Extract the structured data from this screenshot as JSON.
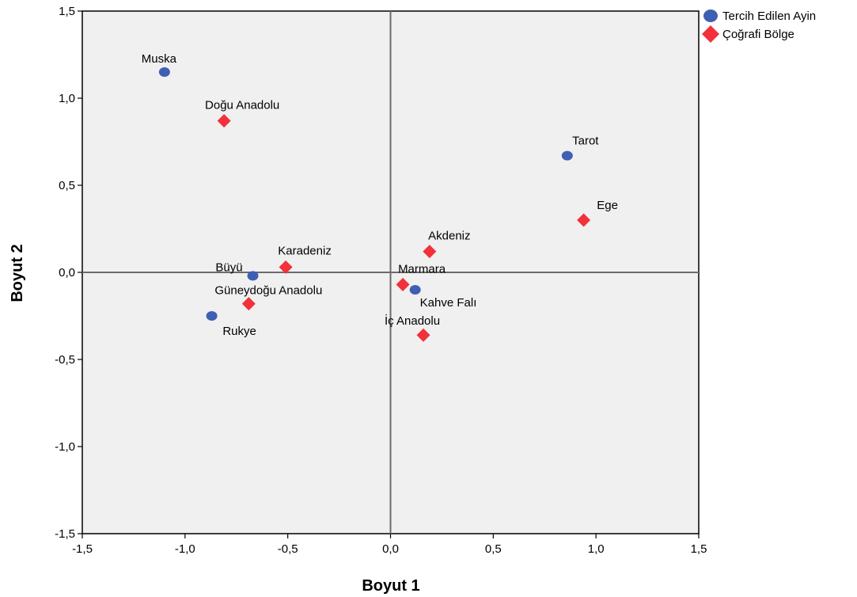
{
  "chart_data": {
    "type": "scatter",
    "title": "",
    "xlabel": "Boyut 1",
    "ylabel": "Boyut 2",
    "xlim": [
      -1.5,
      1.5
    ],
    "ylim": [
      -1.5,
      1.5
    ],
    "xticks": [
      -1.5,
      -1.0,
      -0.5,
      0.0,
      0.5,
      1.0,
      1.5
    ],
    "yticks": [
      -1.5,
      -1.0,
      -0.5,
      0.0,
      0.5,
      1.0,
      1.5
    ],
    "xtick_labels": [
      "-1,5",
      "-1,0",
      "-0,5",
      "0,0",
      "0,5",
      "1,0",
      "1,5"
    ],
    "ytick_labels": [
      "-1,5",
      "-1,0",
      "-0,5",
      "0,0",
      "0,5",
      "1,0",
      "1,5"
    ],
    "reference_lines": {
      "x": 0,
      "y": 0
    },
    "grid": false,
    "legend_position": "top-right",
    "series": [
      {
        "name": "Tercih Edilen Ayin",
        "marker": "circle",
        "color": "#3F5FB3",
        "points": [
          {
            "label": "Muska",
            "x": -1.1,
            "y": 1.15
          },
          {
            "label": "Tarot",
            "x": 0.86,
            "y": 0.67
          },
          {
            "label": "Büyü",
            "x": -0.67,
            "y": -0.02
          },
          {
            "label": "Kahve Falı",
            "x": 0.12,
            "y": -0.1
          },
          {
            "label": "Rukye",
            "x": -0.87,
            "y": -0.25
          }
        ]
      },
      {
        "name": "Çoğrafi Bölge",
        "marker": "diamond",
        "color": "#F2313A",
        "points": [
          {
            "label": "Doğu Anadolu",
            "x": -0.81,
            "y": 0.87
          },
          {
            "label": "Ege",
            "x": 0.94,
            "y": 0.3
          },
          {
            "label": "Akdeniz",
            "x": 0.19,
            "y": 0.12
          },
          {
            "label": "Karadeniz",
            "x": -0.51,
            "y": 0.03
          },
          {
            "label": "Marmara",
            "x": 0.06,
            "y": -0.07
          },
          {
            "label": "Güneydoğu Anadolu",
            "x": -0.69,
            "y": -0.18
          },
          {
            "label": "İç Anadolu",
            "x": 0.16,
            "y": -0.36
          }
        ]
      }
    ]
  }
}
